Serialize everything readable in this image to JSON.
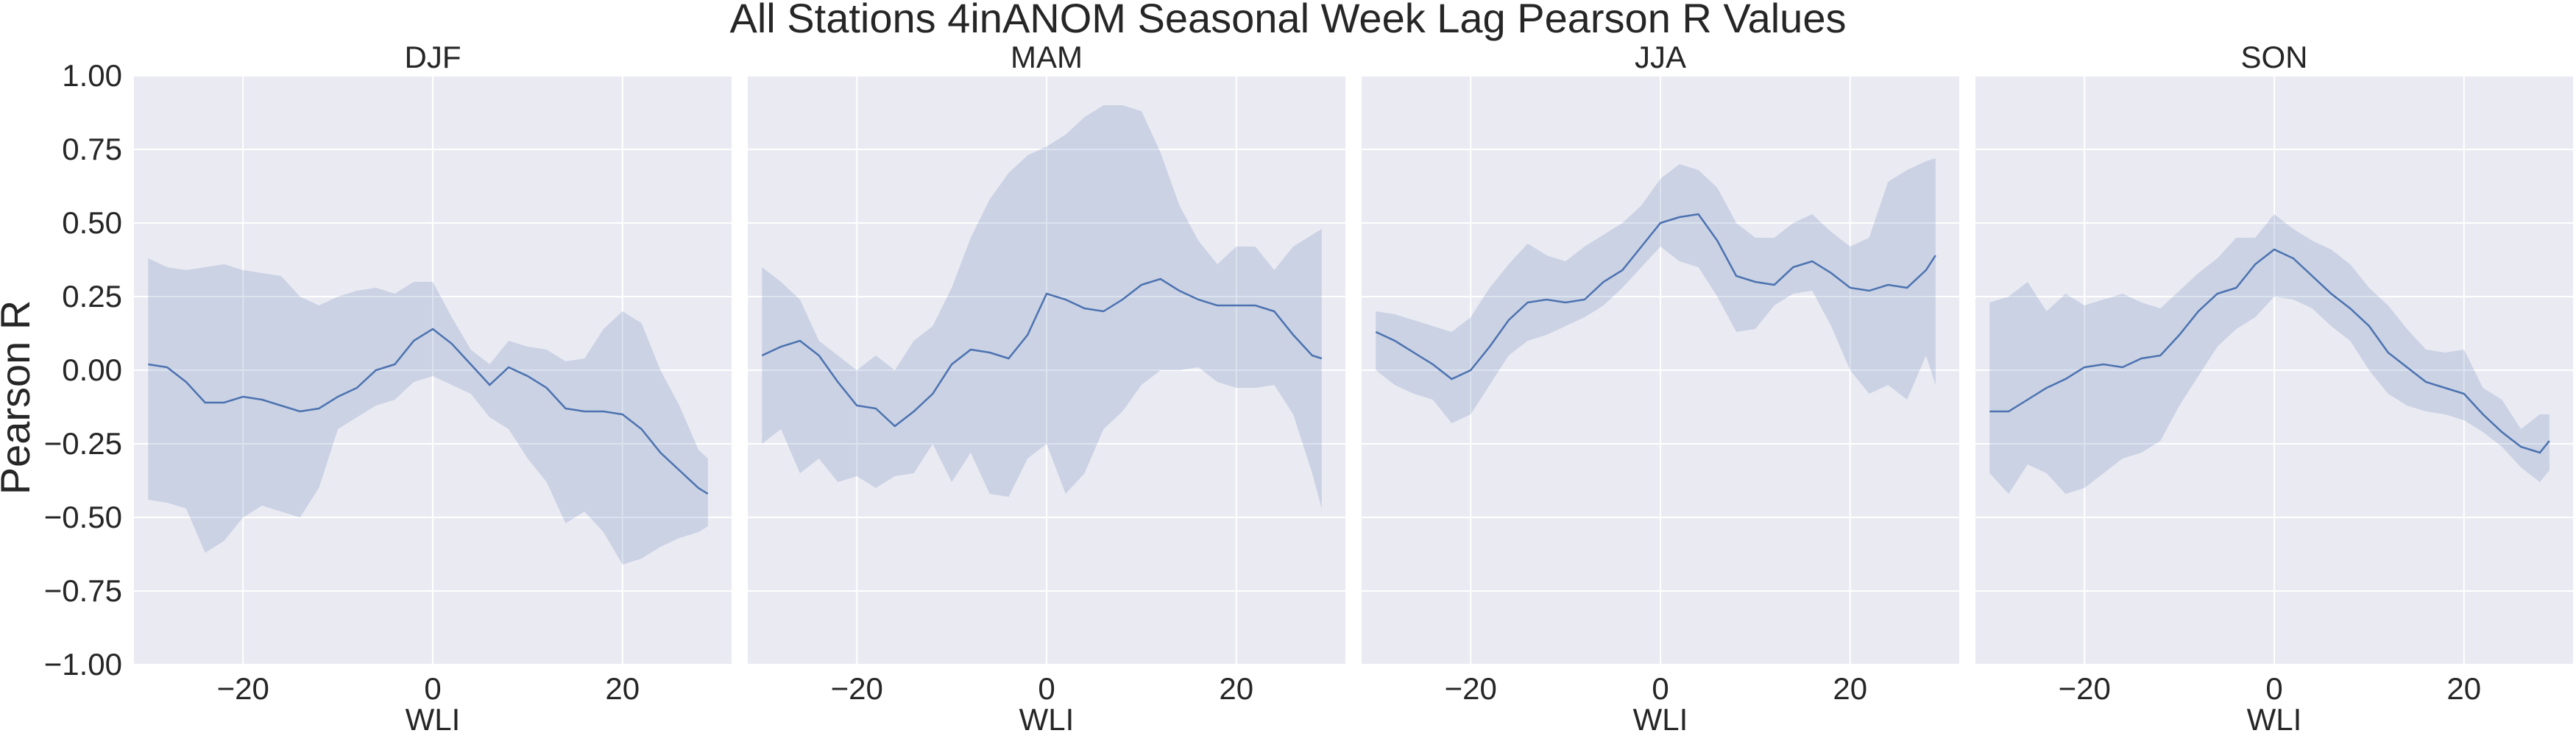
{
  "figure": {
    "title": "All Stations 4inANOM Seasonal Week Lag Pearson R Values",
    "ylabel": "Pearson R",
    "colors": {
      "panel_bg": "#eaeaf2",
      "grid": "#ffffff",
      "line": "#4c72b0",
      "band": "#4c72b0",
      "text": "#262626"
    }
  },
  "chart_data": [
    {
      "type": "line",
      "title": "DJF",
      "xlabel": "WLI",
      "ylabel": "Pearson R",
      "xlim": [
        -31.5,
        31.5
      ],
      "ylim": [
        -1.0,
        1.0
      ],
      "xticks": [
        -20,
        0,
        20
      ],
      "xtick_labels": [
        "−20",
        "0",
        "20"
      ],
      "yticks": [
        -1.0,
        -0.75,
        -0.5,
        -0.25,
        0.0,
        0.25,
        0.5,
        0.75,
        1.0
      ],
      "ytick_labels": [
        "−1.00",
        "−0.75",
        "−0.50",
        "−0.25",
        "0.00",
        "0.25",
        "0.50",
        "0.75",
        "1.00"
      ],
      "grid": true,
      "series": [
        {
          "x": [
            -30,
            -28,
            -26,
            -24,
            -22,
            -20,
            -18,
            -16,
            -14,
            -12,
            -10,
            -8,
            -6,
            -4,
            -2,
            0,
            2,
            4,
            6,
            8,
            10,
            12,
            14,
            16,
            18,
            20,
            22,
            24,
            26,
            28,
            29
          ],
          "values": [
            0.02,
            0.01,
            -0.04,
            -0.11,
            -0.11,
            -0.09,
            -0.1,
            -0.12,
            -0.14,
            -0.13,
            -0.09,
            -0.06,
            0.0,
            0.02,
            0.1,
            0.14,
            0.09,
            0.02,
            -0.05,
            0.01,
            -0.02,
            -0.06,
            -0.13,
            -0.14,
            -0.14,
            -0.15,
            -0.2,
            -0.28,
            -0.34,
            -0.4,
            -0.42
          ],
          "lower": [
            -0.44,
            -0.45,
            -0.47,
            -0.62,
            -0.58,
            -0.5,
            -0.46,
            -0.48,
            -0.5,
            -0.4,
            -0.2,
            -0.16,
            -0.12,
            -0.1,
            -0.04,
            -0.02,
            -0.05,
            -0.08,
            -0.16,
            -0.2,
            -0.3,
            -0.38,
            -0.52,
            -0.48,
            -0.55,
            -0.66,
            -0.64,
            -0.6,
            -0.57,
            -0.55,
            -0.53
          ],
          "upper": [
            0.38,
            0.35,
            0.34,
            0.35,
            0.36,
            0.34,
            0.33,
            0.32,
            0.25,
            0.22,
            0.25,
            0.27,
            0.28,
            0.26,
            0.3,
            0.3,
            0.18,
            0.07,
            0.02,
            0.1,
            0.08,
            0.07,
            0.03,
            0.04,
            0.14,
            0.2,
            0.16,
            0.0,
            -0.12,
            -0.27,
            -0.3
          ]
        }
      ]
    },
    {
      "type": "line",
      "title": "MAM",
      "xlabel": "WLI",
      "xlim": [
        -31.5,
        31.5
      ],
      "ylim": [
        -1.0,
        1.0
      ],
      "xticks": [
        -20,
        0,
        20
      ],
      "xtick_labels": [
        "−20",
        "0",
        "20"
      ],
      "grid": true,
      "series": [
        {
          "x": [
            -30,
            -28,
            -26,
            -24,
            -22,
            -20,
            -18,
            -16,
            -14,
            -12,
            -10,
            -8,
            -6,
            -4,
            -2,
            0,
            2,
            4,
            6,
            8,
            10,
            12,
            14,
            16,
            18,
            20,
            22,
            24,
            26,
            28,
            29
          ],
          "values": [
            0.05,
            0.08,
            0.1,
            0.05,
            -0.04,
            -0.12,
            -0.13,
            -0.19,
            -0.14,
            -0.08,
            0.02,
            0.07,
            0.06,
            0.04,
            0.12,
            0.26,
            0.24,
            0.21,
            0.2,
            0.24,
            0.29,
            0.31,
            0.27,
            0.24,
            0.22,
            0.22,
            0.22,
            0.2,
            0.12,
            0.05,
            0.04
          ],
          "lower": [
            -0.25,
            -0.2,
            -0.35,
            -0.3,
            -0.38,
            -0.36,
            -0.4,
            -0.36,
            -0.35,
            -0.25,
            -0.38,
            -0.28,
            -0.42,
            -0.43,
            -0.3,
            -0.25,
            -0.42,
            -0.35,
            -0.2,
            -0.14,
            -0.05,
            -0.0,
            0.0,
            0.01,
            -0.04,
            -0.06,
            -0.06,
            -0.05,
            -0.15,
            -0.35,
            -0.47
          ],
          "upper": [
            0.35,
            0.3,
            0.24,
            0.1,
            0.05,
            0.0,
            0.05,
            0.0,
            0.1,
            0.15,
            0.28,
            0.45,
            0.58,
            0.67,
            0.73,
            0.76,
            0.8,
            0.86,
            0.9,
            0.9,
            0.88,
            0.74,
            0.56,
            0.44,
            0.36,
            0.42,
            0.42,
            0.34,
            0.42,
            0.46,
            0.48
          ]
        }
      ]
    },
    {
      "type": "line",
      "title": "JJA",
      "xlabel": "WLI",
      "xlim": [
        -31.5,
        31.5
      ],
      "ylim": [
        -1.0,
        1.0
      ],
      "xticks": [
        -20,
        0,
        20
      ],
      "xtick_labels": [
        "−20",
        "0",
        "20"
      ],
      "grid": true,
      "series": [
        {
          "x": [
            -30,
            -28,
            -26,
            -24,
            -22,
            -20,
            -18,
            -16,
            -14,
            -12,
            -10,
            -8,
            -6,
            -4,
            -2,
            0,
            2,
            4,
            6,
            8,
            10,
            12,
            14,
            16,
            18,
            20,
            22,
            24,
            26,
            28,
            29
          ],
          "values": [
            0.13,
            0.1,
            0.06,
            0.02,
            -0.03,
            0.0,
            0.08,
            0.17,
            0.23,
            0.24,
            0.23,
            0.24,
            0.3,
            0.34,
            0.42,
            0.5,
            0.52,
            0.53,
            0.44,
            0.32,
            0.3,
            0.29,
            0.35,
            0.37,
            0.33,
            0.28,
            0.27,
            0.29,
            0.28,
            0.34,
            0.39
          ],
          "lower": [
            0.0,
            -0.05,
            -0.08,
            -0.1,
            -0.18,
            -0.15,
            -0.05,
            0.05,
            0.1,
            0.12,
            0.15,
            0.18,
            0.22,
            0.28,
            0.35,
            0.42,
            0.37,
            0.35,
            0.25,
            0.13,
            0.14,
            0.22,
            0.26,
            0.27,
            0.15,
            0.0,
            -0.08,
            -0.05,
            -0.1,
            0.05,
            -0.05
          ],
          "upper": [
            0.2,
            0.19,
            0.17,
            0.15,
            0.13,
            0.18,
            0.28,
            0.36,
            0.43,
            0.39,
            0.37,
            0.42,
            0.46,
            0.5,
            0.56,
            0.65,
            0.7,
            0.68,
            0.62,
            0.5,
            0.45,
            0.45,
            0.5,
            0.53,
            0.47,
            0.42,
            0.45,
            0.64,
            0.68,
            0.71,
            0.72
          ]
        }
      ]
    },
    {
      "type": "line",
      "title": "SON",
      "xlabel": "WLI",
      "xlim": [
        -31.5,
        31.5
      ],
      "ylim": [
        -1.0,
        1.0
      ],
      "xticks": [
        -20,
        0,
        20
      ],
      "xtick_labels": [
        "−20",
        "0",
        "20"
      ],
      "grid": true,
      "series": [
        {
          "x": [
            -30,
            -28,
            -26,
            -24,
            -22,
            -20,
            -18,
            -16,
            -14,
            -12,
            -10,
            -8,
            -6,
            -4,
            -2,
            0,
            2,
            4,
            6,
            8,
            10,
            12,
            14,
            16,
            18,
            20,
            22,
            24,
            26,
            28,
            29
          ],
          "values": [
            -0.14,
            -0.14,
            -0.1,
            -0.06,
            -0.03,
            0.01,
            0.02,
            0.01,
            0.04,
            0.05,
            0.12,
            0.2,
            0.26,
            0.28,
            0.36,
            0.41,
            0.38,
            0.32,
            0.26,
            0.21,
            0.15,
            0.06,
            0.01,
            -0.04,
            -0.06,
            -0.08,
            -0.15,
            -0.21,
            -0.26,
            -0.28,
            -0.24
          ],
          "lower": [
            -0.35,
            -0.42,
            -0.32,
            -0.35,
            -0.42,
            -0.4,
            -0.35,
            -0.3,
            -0.28,
            -0.24,
            -0.12,
            -0.02,
            0.08,
            0.14,
            0.18,
            0.25,
            0.24,
            0.21,
            0.15,
            0.1,
            0.0,
            -0.08,
            -0.12,
            -0.14,
            -0.15,
            -0.17,
            -0.21,
            -0.26,
            -0.33,
            -0.38,
            -0.34
          ],
          "upper": [
            0.23,
            0.25,
            0.3,
            0.2,
            0.26,
            0.22,
            0.24,
            0.26,
            0.23,
            0.21,
            0.27,
            0.33,
            0.38,
            0.45,
            0.45,
            0.53,
            0.48,
            0.44,
            0.41,
            0.36,
            0.28,
            0.22,
            0.14,
            0.07,
            0.06,
            0.07,
            -0.06,
            -0.1,
            -0.2,
            -0.15,
            -0.15
          ]
        }
      ]
    }
  ]
}
